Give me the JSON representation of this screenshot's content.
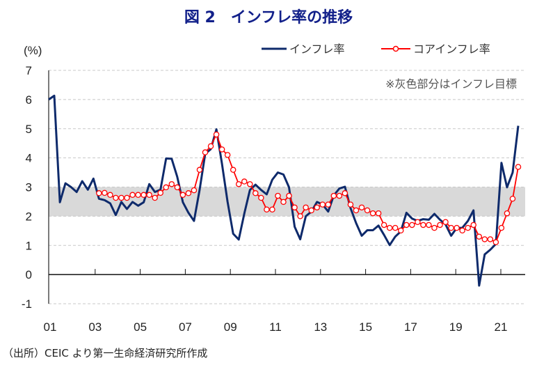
{
  "chart_data": {
    "type": "line",
    "title": "図 2　インフレ率の推移",
    "ylabel": "(%)",
    "xlabel": "",
    "ylim": [
      -1,
      7
    ],
    "yticks": [
      "7",
      "6",
      "5",
      "4",
      "3",
      "2",
      "1",
      "0",
      "-1"
    ],
    "ytick_values": [
      7,
      6,
      5,
      4,
      3,
      2,
      1,
      0,
      -1
    ],
    "xtick_labels": [
      "01",
      "03",
      "05",
      "07",
      "09",
      "11",
      "13",
      "15",
      "17",
      "19",
      "21"
    ],
    "x_frequency": "quarterly, 2001Q1 onward",
    "grid": true,
    "legend_position": "top-right",
    "target_band": {
      "low": 2,
      "high": 3,
      "color": "#d9d9d9"
    },
    "annotation": "※灰色部分はインフレ目標",
    "series": [
      {
        "name": "インフレ率",
        "color": "#0e2a6b",
        "marker": "none",
        "values": [
          6.0,
          6.13,
          2.48,
          3.13,
          3.0,
          2.83,
          3.2,
          2.91,
          3.29,
          2.6,
          2.55,
          2.44,
          2.04,
          2.49,
          2.25,
          2.49,
          2.36,
          2.48,
          3.1,
          2.83,
          2.91,
          3.98,
          3.97,
          3.35,
          2.48,
          2.12,
          1.84,
          2.91,
          4.14,
          4.3,
          4.98,
          3.8,
          2.5,
          1.4,
          1.2,
          2.1,
          2.9,
          3.08,
          2.9,
          2.75,
          3.25,
          3.5,
          3.43,
          2.99,
          1.64,
          1.21,
          2.0,
          2.16,
          2.49,
          2.4,
          2.16,
          2.71,
          2.95,
          3.01,
          2.28,
          1.76,
          1.33,
          1.52,
          1.52,
          1.68,
          1.36,
          1.01,
          1.3,
          1.48,
          2.12,
          1.92,
          1.84,
          1.9,
          1.88,
          2.08,
          1.88,
          1.72,
          1.33,
          1.6,
          1.6,
          1.84,
          2.2,
          -0.38,
          0.69,
          0.85,
          1.05,
          3.83,
          2.99,
          3.5,
          5.1
        ]
      },
      {
        "name": "コアインフレ率",
        "color": "#ff0000",
        "marker": "circle",
        "values": [
          null,
          null,
          null,
          null,
          null,
          null,
          null,
          null,
          null,
          2.79,
          2.8,
          2.73,
          2.63,
          2.63,
          2.63,
          2.73,
          2.73,
          2.73,
          2.73,
          2.63,
          2.8,
          2.99,
          3.1,
          2.99,
          2.73,
          2.79,
          2.89,
          3.59,
          4.19,
          4.4,
          4.8,
          4.29,
          4.1,
          3.59,
          3.1,
          3.19,
          3.1,
          2.79,
          2.63,
          2.23,
          2.23,
          2.7,
          2.49,
          2.7,
          2.3,
          2.0,
          2.3,
          2.2,
          2.3,
          2.4,
          2.4,
          2.7,
          2.7,
          2.79,
          2.4,
          2.2,
          2.3,
          2.2,
          2.1,
          2.1,
          1.7,
          1.6,
          1.6,
          1.51,
          1.7,
          1.7,
          1.8,
          1.7,
          1.7,
          1.6,
          1.7,
          1.8,
          1.6,
          1.6,
          1.51,
          1.6,
          1.7,
          1.3,
          1.21,
          1.21,
          1.11,
          1.6,
          2.1,
          2.6,
          3.69
        ]
      }
    ]
  },
  "source": "（出所）CEIC より第一生命経済研究所作成"
}
